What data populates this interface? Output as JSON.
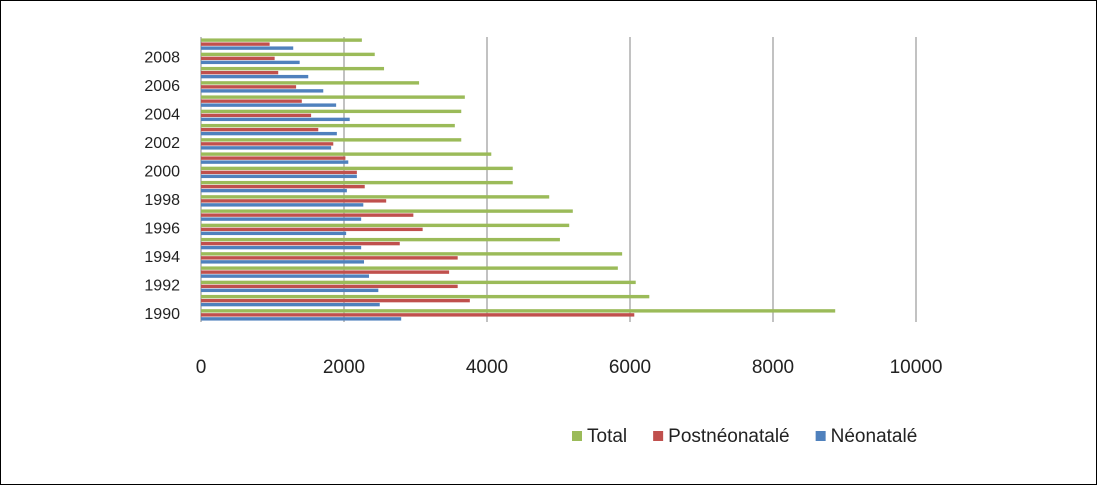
{
  "chart_data": {
    "type": "bar",
    "orientation": "horizontal",
    "categories": [
      "1990",
      null,
      "1992",
      null,
      "1994",
      null,
      "1996",
      null,
      "1998",
      null,
      "2000",
      null,
      "2002",
      null,
      "2004",
      null,
      "2006",
      null,
      "2008",
      null
    ],
    "series": [
      {
        "name": "Total",
        "color": "#9bbb59",
        "values": [
          8870,
          6270,
          6080,
          5830,
          5890,
          5020,
          5150,
          5200,
          4870,
          4360,
          4360,
          4060,
          3640,
          3550,
          3640,
          3690,
          3050,
          2560,
          2430,
          2250
        ]
      },
      {
        "name": "Postnéonatalé",
        "color": "#c0504d",
        "values": [
          6060,
          3760,
          3590,
          3470,
          3590,
          2780,
          3100,
          2970,
          2590,
          2290,
          2180,
          2020,
          1850,
          1640,
          1540,
          1410,
          1330,
          1080,
          1030,
          960
        ]
      },
      {
        "name": "Néonatalé",
        "color": "#4f81bd",
        "values": [
          2800,
          2500,
          2480,
          2350,
          2280,
          2240,
          2030,
          2240,
          2270,
          2040,
          2180,
          2060,
          1820,
          1900,
          2080,
          1890,
          1710,
          1500,
          1380,
          1290
        ]
      }
    ],
    "xlim": [
      0,
      10000
    ],
    "xticks": [
      0,
      2000,
      4000,
      6000,
      8000,
      10000
    ],
    "grid": true,
    "legend": "bottom"
  }
}
